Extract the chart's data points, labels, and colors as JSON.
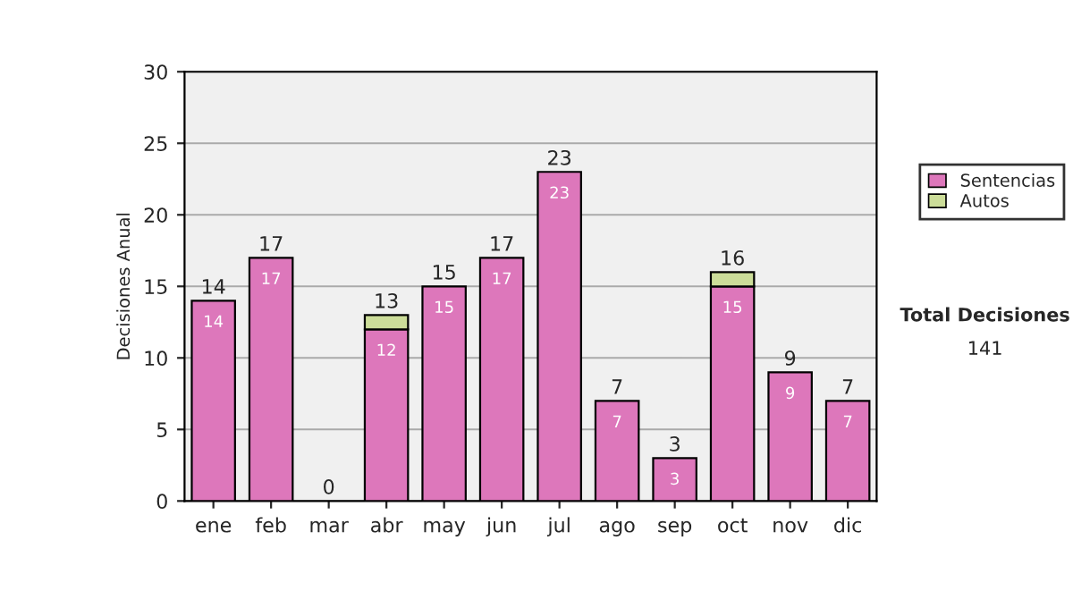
{
  "chart_data": {
    "type": "bar",
    "ylabel": "Decisiones Anual",
    "categories": [
      "ene",
      "feb",
      "mar",
      "abr",
      "may",
      "jun",
      "jul",
      "ago",
      "sep",
      "oct",
      "nov",
      "dic"
    ],
    "stacked": true,
    "series": [
      {
        "name": "Sentencias",
        "color": "#dd77bb",
        "values": [
          14,
          17,
          0,
          12,
          15,
          17,
          23,
          7,
          3,
          15,
          9,
          7
        ],
        "value_labels": [
          "14",
          "17",
          null,
          "12",
          "15",
          "17",
          "23",
          "7",
          "3",
          "15",
          "9",
          "7"
        ]
      },
      {
        "name": "Autos",
        "color": "#ccdd99",
        "values": [
          null,
          null,
          null,
          1,
          null,
          null,
          null,
          null,
          null,
          1,
          null,
          null
        ]
      }
    ],
    "totals": [
      "14",
      "17",
      "0",
      "13",
      "15",
      "17",
      "23",
      "7",
      "3",
      "16",
      "9",
      "7"
    ],
    "ylim": [
      0,
      30
    ],
    "yticks": [
      0,
      5,
      10,
      15,
      20,
      25,
      30
    ],
    "grid": "y",
    "legend": "right",
    "annotations": [
      "Total Decisiones",
      "141"
    ]
  }
}
